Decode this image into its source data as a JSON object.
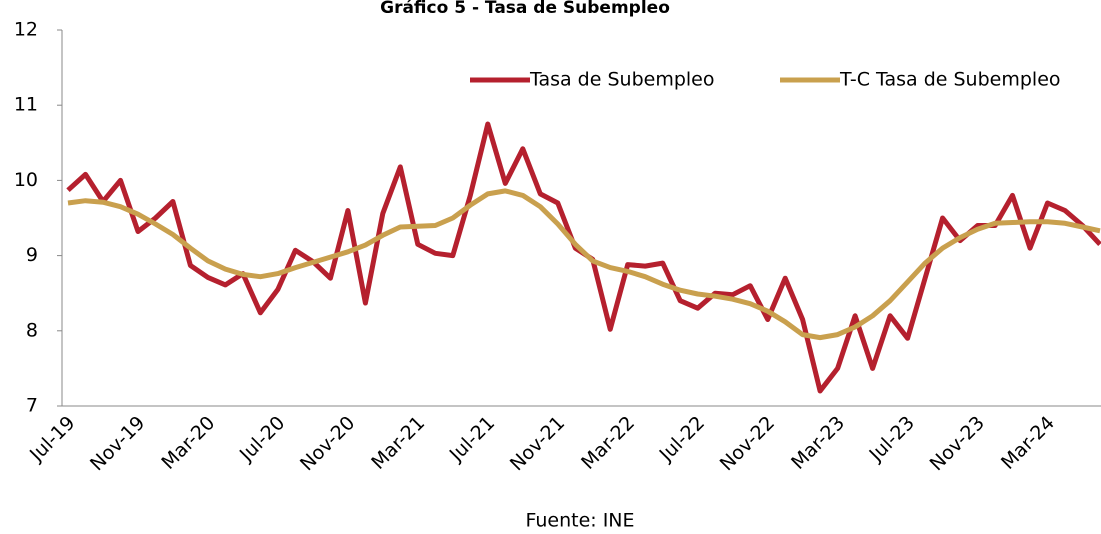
{
  "chart_data": {
    "type": "line",
    "title": "Gráfico 5 - Tasa de Subempleo",
    "source": "Fuente: INE",
    "categories": [
      "Jul-19",
      null,
      null,
      null,
      "Nov-19",
      null,
      null,
      null,
      "Mar-20",
      null,
      null,
      null,
      "Jul-20",
      null,
      null,
      null,
      "Nov-20",
      null,
      null,
      null,
      "Mar-21",
      null,
      null,
      null,
      "Jul-21",
      null,
      null,
      null,
      "Nov-21",
      null,
      null,
      null,
      "Mar-22",
      null,
      null,
      null,
      "Jul-22",
      null,
      null,
      null,
      "Nov-22",
      null,
      null,
      null,
      "Mar-23",
      null,
      null,
      null,
      "Jul-23",
      null,
      null,
      null,
      "Nov-23",
      null,
      null,
      null,
      "Mar-24",
      null,
      null,
      null
    ],
    "series": [
      {
        "name": "Tasa de Subempleo",
        "color": "#b5202e",
        "values": [
          9.87,
          10.08,
          9.72,
          10.0,
          9.32,
          9.5,
          9.72,
          8.87,
          8.71,
          8.61,
          8.76,
          8.24,
          8.55,
          9.07,
          8.92,
          8.7,
          9.6,
          8.37,
          9.56,
          10.18,
          9.15,
          9.03,
          9.0,
          9.8,
          10.75,
          9.96,
          10.42,
          9.82,
          9.7,
          9.1,
          8.95,
          8.02,
          8.88,
          8.86,
          8.9,
          8.4,
          8.3,
          8.5,
          8.48,
          8.6,
          8.15,
          8.7,
          8.15,
          7.2,
          7.5,
          8.2,
          7.5,
          8.2,
          7.9,
          8.7,
          9.5,
          9.2,
          9.4,
          9.4,
          9.8,
          9.1,
          9.7,
          9.6,
          9.4,
          9.15
        ]
      },
      {
        "name": "T-C Tasa de Subempleo",
        "color": "#c9a04e",
        "values": [
          9.7,
          9.73,
          9.71,
          9.65,
          9.55,
          9.42,
          9.28,
          9.1,
          8.93,
          8.82,
          8.75,
          8.72,
          8.76,
          8.84,
          8.91,
          8.98,
          9.05,
          9.14,
          9.27,
          9.38,
          9.39,
          9.4,
          9.5,
          9.67,
          9.82,
          9.86,
          9.8,
          9.65,
          9.42,
          9.15,
          8.93,
          8.84,
          8.79,
          8.72,
          8.62,
          8.54,
          8.49,
          8.46,
          8.42,
          8.36,
          8.26,
          8.12,
          7.95,
          7.91,
          7.95,
          8.05,
          8.2,
          8.4,
          8.65,
          8.9,
          9.1,
          9.24,
          9.35,
          9.43,
          9.44,
          9.45,
          9.45,
          9.43,
          9.38,
          9.33
        ]
      }
    ],
    "ylim": [
      7,
      12
    ],
    "yticks": [
      7,
      8,
      9,
      10,
      11,
      12
    ],
    "grid": false,
    "legend": "upper right"
  }
}
